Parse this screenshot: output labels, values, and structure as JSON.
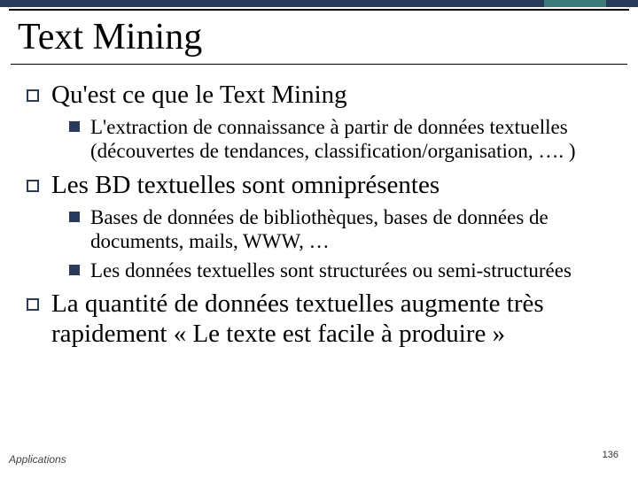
{
  "colors": {
    "top_bar": "#2a3a5a",
    "top_accent": "#3d7a7a",
    "bullet_outline": "#2a3a5a",
    "bullet_fill": "#2a3a5a",
    "background": "#ffffff",
    "text": "#000000"
  },
  "title": "Text Mining",
  "bullets": {
    "b1": {
      "text": "Qu'est ce que le Text Mining",
      "sub": {
        "s1": "L'extraction de connaissance à partir de données textuelles (découvertes de tendances, classification/organisation, …. )"
      }
    },
    "b2": {
      "text": "Les BD textuelles sont omniprésentes",
      "sub": {
        "s1": "Bases de données de bibliothèques, bases de données de documents, mails, WWW, …",
        "s2": "Les données textuelles sont structurées ou semi-structurées"
      }
    },
    "b3": {
      "text": "La quantité de données textuelles augmente très rapidement « Le texte est facile à produire »"
    }
  },
  "footer": {
    "label": "Applications",
    "page": "136"
  }
}
